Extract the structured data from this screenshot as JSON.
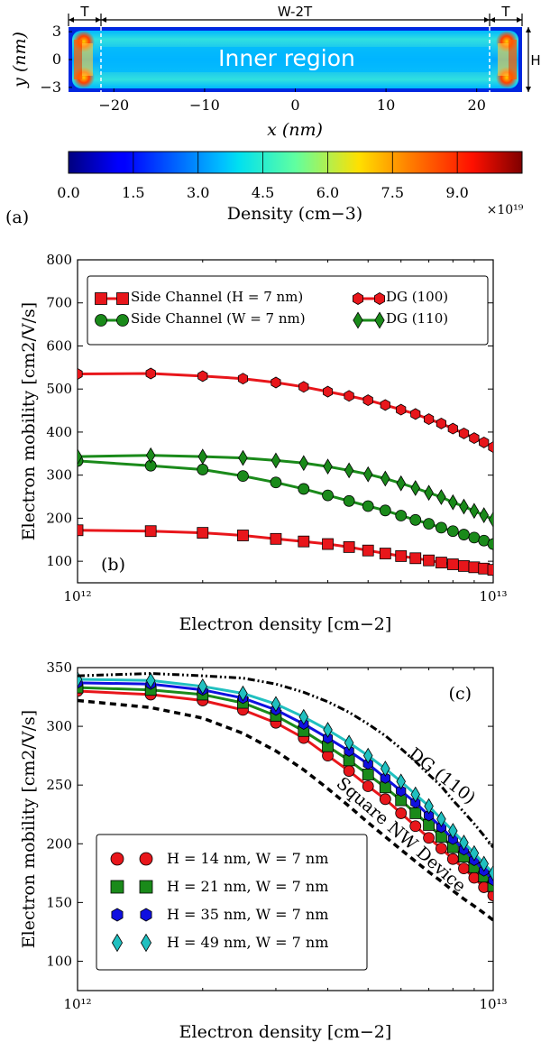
{
  "chart_data": [
    {
      "panel": "(a)",
      "type": "heatmap",
      "xlabel": "x (nm)",
      "ylabel": "y (nm)",
      "xticks": [
        "−20",
        "−10",
        "0",
        "10",
        "20"
      ],
      "yticks": [
        "3",
        "0",
        "−3"
      ],
      "xlim": [
        -25,
        25
      ],
      "ylim": [
        -3.5,
        3.5
      ],
      "annotations": {
        "left": "T",
        "middle": "W-2T",
        "right": "T",
        "side": "H",
        "inner": "Inner region"
      },
      "colorbar": {
        "label": "Density (cm−3)",
        "ticks": [
          "0.0",
          "1.5",
          "3.0",
          "4.5",
          "6.0",
          "7.5",
          "9.0"
        ],
        "range": [
          0,
          10.5
        ],
        "multiplier": "×10¹⁹",
        "colormap": "jet"
      }
    },
    {
      "panel": "(b)",
      "type": "line",
      "xscale": "log",
      "xlabel": "Electron density [cm−2]",
      "ylabel": "Electron mobility [cm2/V/s]",
      "xlim": [
        1000000000000.0,
        10000000000000.0
      ],
      "ylim": [
        50,
        800
      ],
      "yticks": [
        "100",
        "200",
        "300",
        "400",
        "500",
        "600",
        "700",
        "800"
      ],
      "xticks": [
        "10¹²",
        "10¹³"
      ],
      "legend_position": "top",
      "x": [
        1000000000000.0,
        1500000000000.0,
        2000000000000.0,
        2500000000000.0,
        3000000000000.0,
        3500000000000.0,
        4000000000000.0,
        4500000000000.0,
        5000000000000.0,
        5500000000000.0,
        6000000000000.0,
        6500000000000.0,
        7000000000000.0,
        7500000000000.0,
        8000000000000.0,
        8500000000000.0,
        9000000000000.0,
        9500000000000.0,
        10000000000000.0
      ],
      "series": [
        {
          "name": "Side Channel (H = 7 nm)",
          "marker": "square",
          "color": "#e8161b",
          "x_idx": [
            0,
            1,
            2,
            3,
            4,
            5,
            6,
            7,
            8,
            9,
            10,
            11,
            12,
            13,
            14,
            15,
            16,
            17,
            18
          ],
          "values": [
            172,
            170,
            166,
            160,
            152,
            146,
            140,
            133,
            125,
            118,
            112,
            107,
            102,
            97,
            93,
            89,
            86,
            83,
            80
          ]
        },
        {
          "name": "Side Channel (W = 7 nm)",
          "marker": "circle",
          "color": "#1a8a1a",
          "values": [
            333,
            322,
            313,
            298,
            283,
            268,
            253,
            240,
            228,
            218,
            206,
            196,
            187,
            178,
            170,
            162,
            155,
            148,
            140
          ]
        },
        {
          "name": "DG (100)",
          "marker": "hexagon",
          "color": "#e8161b",
          "values": [
            535,
            536,
            530,
            524,
            515,
            505,
            494,
            484,
            474,
            463,
            452,
            442,
            430,
            420,
            408,
            397,
            386,
            376,
            365
          ]
        },
        {
          "name": "DG (110)",
          "marker": "diamond",
          "color": "#1a8a1a",
          "values": [
            343,
            346,
            343,
            340,
            334,
            328,
            320,
            311,
            302,
            292,
            281,
            270,
            259,
            249,
            237,
            227,
            217,
            207,
            197
          ]
        }
      ]
    },
    {
      "panel": "(c)",
      "type": "line",
      "xscale": "log",
      "xlabel": "Electron density [cm−2]",
      "ylabel": "Electron mobility [cm2/V/s]",
      "xlim": [
        1000000000000.0,
        10000000000000.0
      ],
      "ylim": [
        75,
        350
      ],
      "yticks": [
        "100",
        "150",
        "200",
        "250",
        "300",
        "350"
      ],
      "xticks": [
        "10¹²",
        "10¹³"
      ],
      "legend_position": "bottom-left",
      "annotations": [
        "DG (110)",
        "Square NW Device"
      ],
      "x": [
        1000000000000.0,
        1500000000000.0,
        2000000000000.0,
        2500000000000.0,
        3000000000000.0,
        3500000000000.0,
        4000000000000.0,
        4500000000000.0,
        5000000000000.0,
        5500000000000.0,
        6000000000000.0,
        6500000000000.0,
        7000000000000.0,
        7500000000000.0,
        8000000000000.0,
        8500000000000.0,
        9000000000000.0,
        9500000000000.0,
        10000000000000.0
      ],
      "series": [
        {
          "name": "H = 14 nm, W = 7 nm",
          "marker": "circle",
          "color": "#e8161b",
          "values": [
            330,
            327,
            322,
            314,
            303,
            290,
            275,
            262,
            249,
            238,
            226,
            215,
            205,
            196,
            187,
            179,
            171,
            163,
            156
          ]
        },
        {
          "name": "H = 21 nm, W = 7 nm",
          "marker": "square",
          "color": "#1a8a1a",
          "values": [
            333,
            331,
            327,
            320,
            309,
            296,
            283,
            271,
            259,
            248,
            237,
            226,
            216,
            206,
            197,
            189,
            180,
            172,
            164
          ]
        },
        {
          "name": "H = 35 nm, W = 7 nm",
          "marker": "hexagon",
          "color": "#1010e0",
          "values": [
            337,
            336,
            331,
            324,
            314,
            302,
            290,
            279,
            268,
            256,
            245,
            235,
            224,
            214,
            204,
            195,
            186,
            177,
            169
          ]
        },
        {
          "name": "H = 49 nm, W = 7 nm",
          "marker": "diamond",
          "color": "#20c0c0",
          "values": [
            340,
            339,
            334,
            328,
            319,
            308,
            297,
            286,
            275,
            264,
            253,
            242,
            232,
            221,
            211,
            201,
            192,
            183,
            175
          ]
        },
        {
          "name": "DG (110)",
          "style": "dash-dot",
          "color": "#000000",
          "values": [
            343,
            345,
            343,
            341,
            336,
            329,
            321,
            312,
            302,
            292,
            281,
            270,
            259,
            249,
            237,
            227,
            217,
            207,
            197
          ]
        },
        {
          "name": "Square NW Device",
          "style": "dashed",
          "color": "#000000",
          "values": [
            322,
            316,
            307,
            294,
            279,
            263,
            247,
            232,
            218,
            206,
            195,
            185,
            176,
            168,
            160,
            153,
            147,
            141,
            135
          ]
        }
      ]
    }
  ]
}
